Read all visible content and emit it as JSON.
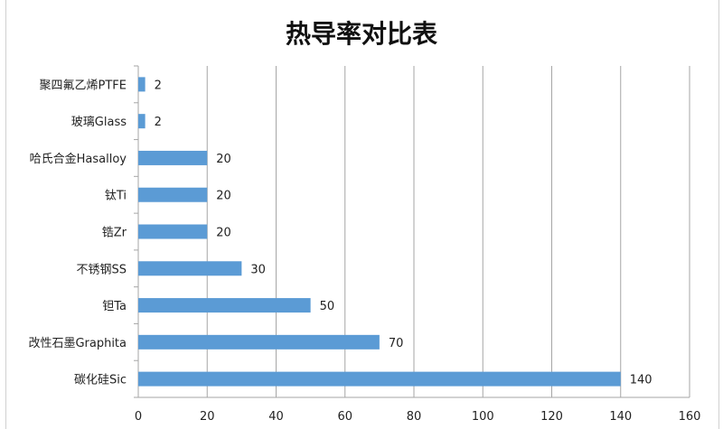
{
  "chart_data": {
    "type": "bar",
    "orientation": "horizontal",
    "title": "热导率对比表",
    "categories": [
      "聚四氟乙烯PTFE",
      "玻璃Glass",
      "哈氏合金Hasalloy",
      "钛Ti",
      "锆Zr",
      "不锈钢SS",
      "钽Ta",
      "改性石墨Graphita",
      "碳化硅Sic"
    ],
    "values": [
      2,
      2,
      20,
      20,
      20,
      30,
      50,
      70,
      140
    ],
    "xlim": [
      0,
      160
    ],
    "xticks": [
      0,
      20,
      40,
      60,
      80,
      100,
      120,
      140,
      160
    ],
    "xlabel": "",
    "ylabel": "",
    "grid": "vertical",
    "data_labels": true,
    "legend": "none",
    "bar_color": "#5b9bd5"
  }
}
